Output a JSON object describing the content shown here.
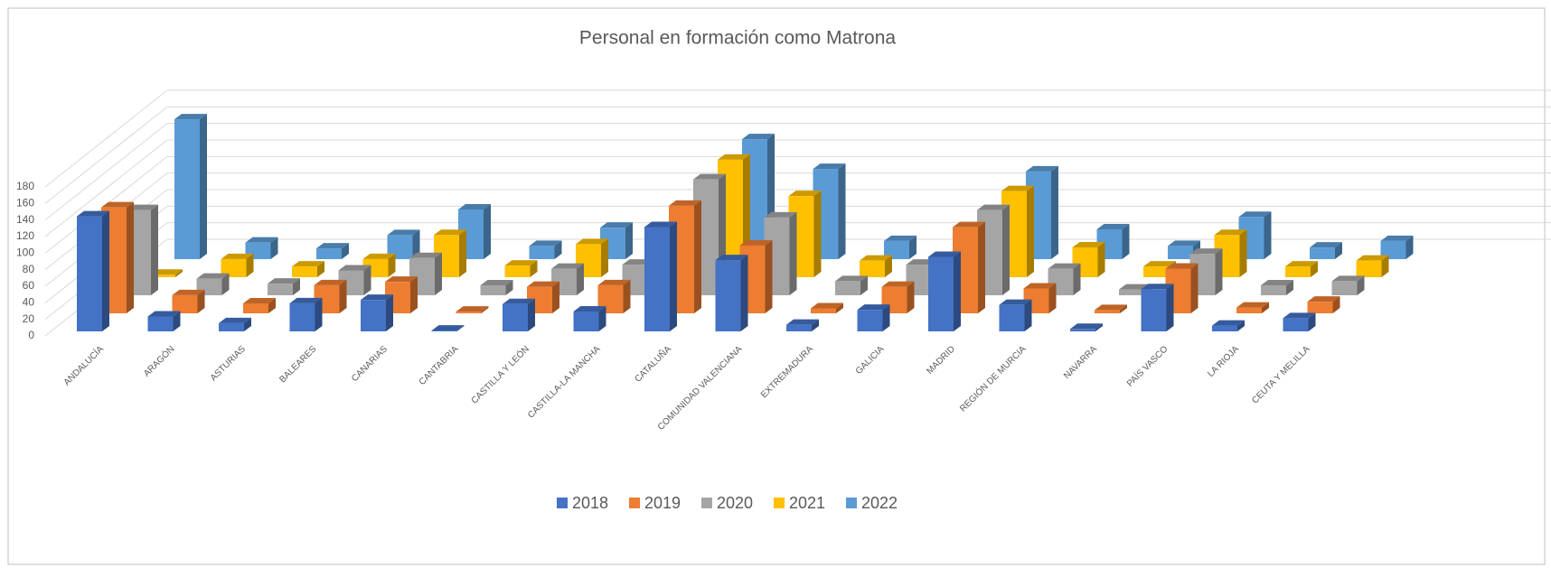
{
  "chart_data": {
    "type": "bar3d",
    "title": "Personal en formación como Matrona",
    "categories": [
      "ANDALUCÍA",
      "ARAGÓN",
      "ASTURIAS",
      "BALEARES",
      "CANARIAS",
      "CANTABRIA",
      "CASTILLA Y LEÓN",
      "CASTILLA-LA MANCHA",
      "CATALUÑA",
      "COMUNIDAD VALENCIANA",
      "EXTREMADURA",
      "GALICIA",
      "MADRID",
      "REGIÓN DE MURCIA",
      "NAVARRA",
      "PAÍS VASCO",
      "LA RIOJA",
      "CEUTA Y MELILLA"
    ],
    "series": [
      {
        "name": "2018",
        "color": "#4472c4",
        "values": [
          139,
          18,
          10,
          34,
          38,
          1,
          33,
          24,
          126,
          86,
          8,
          26,
          90,
          32,
          3,
          51,
          7,
          16
        ]
      },
      {
        "name": "2019",
        "color": "#ed7d31",
        "values": [
          128,
          22,
          12,
          34,
          38,
          2,
          32,
          34,
          130,
          82,
          6,
          32,
          104,
          30,
          4,
          54,
          7,
          14
        ]
      },
      {
        "name": "2020",
        "color": "#a5a5a5",
        "values": [
          103,
          20,
          14,
          30,
          45,
          12,
          32,
          37,
          140,
          94,
          17,
          37,
          103,
          32,
          7,
          50,
          12,
          17
        ]
      },
      {
        "name": "2021",
        "color": "#ffc000",
        "values": [
          3,
          22,
          13,
          22,
          51,
          14,
          40,
          0,
          142,
          98,
          20,
          0,
          104,
          36,
          13,
          51,
          13,
          20
        ]
      },
      {
        "name": "2022",
        "color": "#5b9bd5",
        "values": [
          169,
          20,
          13,
          29,
          60,
          16,
          38,
          0,
          145,
          109,
          22,
          0,
          106,
          36,
          16,
          51,
          14,
          22
        ]
      }
    ],
    "ylim": [
      0,
      180
    ],
    "yticks": [
      0,
      20,
      40,
      60,
      80,
      100,
      120,
      140,
      160,
      180
    ],
    "grid": true,
    "legend": "bottom"
  }
}
